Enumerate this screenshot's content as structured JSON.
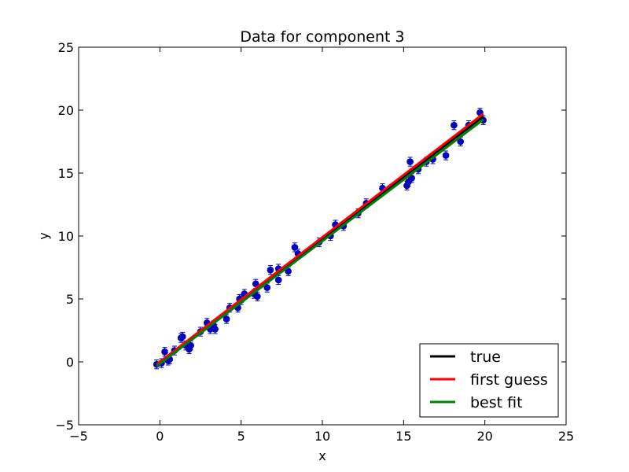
{
  "chart_data": {
    "type": "scatter",
    "title": "Data for component 3",
    "xlabel": "x",
    "ylabel": "y",
    "xlim": [
      -5,
      25
    ],
    "ylim": [
      -5,
      25
    ],
    "xticks": [
      "−5",
      "0",
      "5",
      "10",
      "15",
      "20",
      "25"
    ],
    "yticks": [
      "−5",
      "0",
      "5",
      "10",
      "15",
      "20",
      "25"
    ],
    "grid": false,
    "legend_position": "bottom-right",
    "data_color": "#0000cc",
    "points": [
      {
        "x": -0.2,
        "y": -0.2
      },
      {
        "x": 0.1,
        "y": -0.1
      },
      {
        "x": 0.3,
        "y": 0.8
      },
      {
        "x": 0.5,
        "y": 0.1
      },
      {
        "x": 0.6,
        "y": 0.2
      },
      {
        "x": 0.9,
        "y": 0.9
      },
      {
        "x": 1.3,
        "y": 1.9
      },
      {
        "x": 1.4,
        "y": 2.0
      },
      {
        "x": 1.6,
        "y": 1.3
      },
      {
        "x": 1.8,
        "y": 1.0
      },
      {
        "x": 1.9,
        "y": 1.3
      },
      {
        "x": 2.5,
        "y": 2.4
      },
      {
        "x": 2.9,
        "y": 3.1
      },
      {
        "x": 3.1,
        "y": 2.6
      },
      {
        "x": 3.3,
        "y": 2.9
      },
      {
        "x": 3.4,
        "y": 2.6
      },
      {
        "x": 4.1,
        "y": 3.4
      },
      {
        "x": 4.3,
        "y": 4.3
      },
      {
        "x": 4.8,
        "y": 4.3
      },
      {
        "x": 4.9,
        "y": 5.0
      },
      {
        "x": 5.0,
        "y": 4.9
      },
      {
        "x": 5.2,
        "y": 5.4
      },
      {
        "x": 5.8,
        "y": 5.4
      },
      {
        "x": 5.9,
        "y": 6.2
      },
      {
        "x": 6.0,
        "y": 5.2
      },
      {
        "x": 6.6,
        "y": 5.9
      },
      {
        "x": 6.8,
        "y": 7.3
      },
      {
        "x": 7.3,
        "y": 7.4
      },
      {
        "x": 7.3,
        "y": 6.5
      },
      {
        "x": 7.9,
        "y": 7.2
      },
      {
        "x": 8.3,
        "y": 9.1
      },
      {
        "x": 8.5,
        "y": 8.6
      },
      {
        "x": 9.8,
        "y": 9.5
      },
      {
        "x": 10.5,
        "y": 10.0
      },
      {
        "x": 10.8,
        "y": 10.9
      },
      {
        "x": 11.3,
        "y": 10.8
      },
      {
        "x": 12.2,
        "y": 11.8
      },
      {
        "x": 12.7,
        "y": 12.6
      },
      {
        "x": 13.7,
        "y": 13.8
      },
      {
        "x": 15.2,
        "y": 14.0
      },
      {
        "x": 15.3,
        "y": 14.3
      },
      {
        "x": 15.4,
        "y": 15.9
      },
      {
        "x": 15.5,
        "y": 14.6
      },
      {
        "x": 15.9,
        "y": 15.3
      },
      {
        "x": 16.4,
        "y": 15.9
      },
      {
        "x": 16.8,
        "y": 16.1
      },
      {
        "x": 17.6,
        "y": 16.4
      },
      {
        "x": 18.1,
        "y": 18.8
      },
      {
        "x": 18.5,
        "y": 17.5
      },
      {
        "x": 19.0,
        "y": 18.8
      },
      {
        "x": 19.7,
        "y": 19.8
      },
      {
        "x": 19.9,
        "y": 19.2
      }
    ],
    "error": 0.35,
    "lines": [
      {
        "name": "true",
        "color": "#000000",
        "x": [
          -0.2,
          19.9
        ],
        "y": [
          -0.2,
          19.5
        ]
      },
      {
        "name": "first guess",
        "color": "#ff0000",
        "x": [
          -0.2,
          19.9
        ],
        "y": [
          -0.2,
          19.7
        ]
      },
      {
        "name": "best fit",
        "color": "#008000",
        "x": [
          -0.2,
          19.9
        ],
        "y": [
          -0.35,
          19.25
        ]
      }
    ]
  }
}
